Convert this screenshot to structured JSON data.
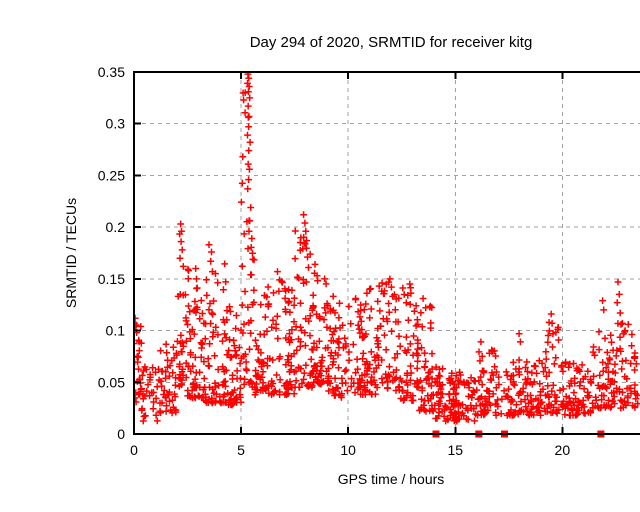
{
  "chart_data": {
    "type": "scatter",
    "title": "Day 294 of 2020, SRMTID for receiver kitg",
    "xlabel": "GPS time / hours",
    "ylabel": "SRMTID / TECUs",
    "xlim": [
      0,
      24
    ],
    "ylim": [
      0,
      0.35
    ],
    "x_ticks": [
      0,
      5,
      10,
      15,
      20
    ],
    "x_tick_labels": [
      "0",
      "5",
      "10",
      "15",
      "20"
    ],
    "y_ticks": [
      0,
      0.05,
      0.1,
      0.15,
      0.2,
      0.25,
      0.3,
      0.35
    ],
    "y_tick_labels": [
      "0",
      "0.05",
      "0.1",
      "0.15",
      "0.2",
      "0.25",
      "0.3",
      "0.35"
    ],
    "grid": true,
    "legend": "none",
    "colors": {
      "marker": "#ff0000",
      "grid": "#a0a0a0",
      "border": "#000000",
      "background": "#ffffff"
    },
    "series": [
      {
        "name": "SRMTID",
        "marker": "plus",
        "color": "#ff0000",
        "density_segments_columns": [
          "t_start_hours",
          "t_end_hours",
          "count",
          "y_min_TECUs",
          "y_max_TECUs",
          "low_skew_exponent"
        ],
        "density_segments": [
          [
            0.0,
            0.35,
            26,
            0.03,
            0.112,
            1.0
          ],
          [
            0.35,
            1.1,
            30,
            0.012,
            0.065,
            1.3
          ],
          [
            1.1,
            2.0,
            45,
            0.02,
            0.092,
            1.5
          ],
          [
            2.0,
            2.45,
            30,
            0.045,
            0.195,
            1.8
          ],
          [
            2.45,
            3.3,
            60,
            0.035,
            0.16,
            1.8
          ],
          [
            3.3,
            4.3,
            65,
            0.03,
            0.168,
            2.0
          ],
          [
            4.3,
            5.0,
            48,
            0.028,
            0.125,
            1.6
          ],
          [
            5.0,
            5.65,
            42,
            0.045,
            0.33,
            1.8
          ],
          [
            5.65,
            7.5,
            115,
            0.038,
            0.148,
            1.8
          ],
          [
            7.5,
            8.35,
            55,
            0.045,
            0.2,
            1.9
          ],
          [
            8.35,
            9.0,
            45,
            0.048,
            0.16,
            1.8
          ],
          [
            9.0,
            10.0,
            62,
            0.035,
            0.128,
            1.6
          ],
          [
            10.0,
            11.5,
            85,
            0.038,
            0.142,
            1.8
          ],
          [
            11.5,
            12.4,
            48,
            0.042,
            0.15,
            1.7
          ],
          [
            12.4,
            13.3,
            55,
            0.032,
            0.142,
            1.8
          ],
          [
            13.3,
            14.05,
            45,
            0.022,
            0.13,
            2.0
          ],
          [
            14.05,
            14.5,
            28,
            0.015,
            0.07,
            1.6
          ],
          [
            14.5,
            15.9,
            78,
            0.012,
            0.06,
            1.3
          ],
          [
            15.9,
            17.1,
            62,
            0.018,
            0.082,
            1.6
          ],
          [
            17.1,
            19.1,
            95,
            0.018,
            0.072,
            1.5
          ],
          [
            19.1,
            19.85,
            42,
            0.02,
            0.112,
            1.9
          ],
          [
            19.85,
            21.35,
            75,
            0.018,
            0.07,
            1.4
          ],
          [
            21.35,
            22.35,
            52,
            0.025,
            0.1,
            1.7
          ],
          [
            22.35,
            23.55,
            60,
            0.025,
            0.108,
            1.6
          ]
        ],
        "peak_points": [
          [
            0.05,
            0.112
          ],
          [
            0.08,
            0.105
          ],
          [
            0.12,
            0.098
          ],
          [
            2.18,
            0.203
          ],
          [
            2.22,
            0.196
          ],
          [
            2.2,
            0.186
          ],
          [
            2.25,
            0.178
          ],
          [
            2.15,
            0.17
          ],
          [
            2.3,
            0.162
          ],
          [
            2.55,
            0.158
          ],
          [
            2.88,
            0.16
          ],
          [
            2.92,
            0.15
          ],
          [
            3.5,
            0.183
          ],
          [
            3.62,
            0.176
          ],
          [
            3.58,
            0.167
          ],
          [
            3.66,
            0.157
          ],
          [
            5.32,
            0.348
          ],
          [
            5.36,
            0.344
          ],
          [
            5.3,
            0.339
          ],
          [
            5.38,
            0.336
          ],
          [
            5.34,
            0.331
          ],
          [
            5.4,
            0.325
          ],
          [
            5.33,
            0.317
          ],
          [
            5.37,
            0.307
          ],
          [
            5.35,
            0.297
          ],
          [
            5.3,
            0.289
          ],
          [
            5.42,
            0.282
          ],
          [
            5.36,
            0.274
          ],
          [
            5.33,
            0.261
          ],
          [
            5.39,
            0.256
          ],
          [
            5.35,
            0.246
          ],
          [
            5.31,
            0.237
          ],
          [
            5.45,
            0.219
          ],
          [
            5.4,
            0.206
          ],
          [
            5.37,
            0.196
          ],
          [
            5.5,
            0.189
          ],
          [
            5.55,
            0.169
          ],
          [
            5.45,
            0.154
          ],
          [
            5.6,
            0.139
          ],
          [
            6.7,
            0.157
          ],
          [
            6.8,
            0.149
          ],
          [
            7.92,
            0.212
          ],
          [
            7.98,
            0.204
          ],
          [
            8.02,
            0.196
          ],
          [
            8.06,
            0.187
          ],
          [
            7.88,
            0.179
          ],
          [
            8.1,
            0.171
          ],
          [
            8.15,
            0.161
          ],
          [
            8.45,
            0.164
          ],
          [
            8.55,
            0.153
          ],
          [
            9.3,
            0.133
          ],
          [
            10.35,
            0.131
          ],
          [
            11.0,
            0.14
          ],
          [
            11.45,
            0.143
          ],
          [
            11.95,
            0.15
          ],
          [
            12.02,
            0.142
          ],
          [
            12.08,
            0.133
          ],
          [
            12.88,
            0.145
          ],
          [
            12.93,
            0.136
          ],
          [
            13.5,
            0.131
          ],
          [
            13.62,
            0.122
          ],
          [
            16.2,
            0.089
          ],
          [
            17.98,
            0.097
          ],
          [
            18.04,
            0.089
          ],
          [
            19.48,
            0.116
          ],
          [
            19.52,
            0.107
          ],
          [
            19.56,
            0.097
          ],
          [
            21.88,
            0.129
          ],
          [
            21.93,
            0.12
          ],
          [
            22.6,
            0.147
          ],
          [
            22.66,
            0.135
          ],
          [
            22.56,
            0.127
          ],
          [
            22.7,
            0.117
          ],
          [
            22.8,
            0.107
          ],
          [
            22.86,
            0.097
          ]
        ]
      },
      {
        "name": "flagged-zero",
        "marker": "filled-square",
        "color": "#ff0000",
        "points": [
          [
            14.1,
            0
          ],
          [
            16.1,
            0
          ],
          [
            17.3,
            0
          ],
          [
            21.8,
            0
          ]
        ]
      }
    ]
  }
}
